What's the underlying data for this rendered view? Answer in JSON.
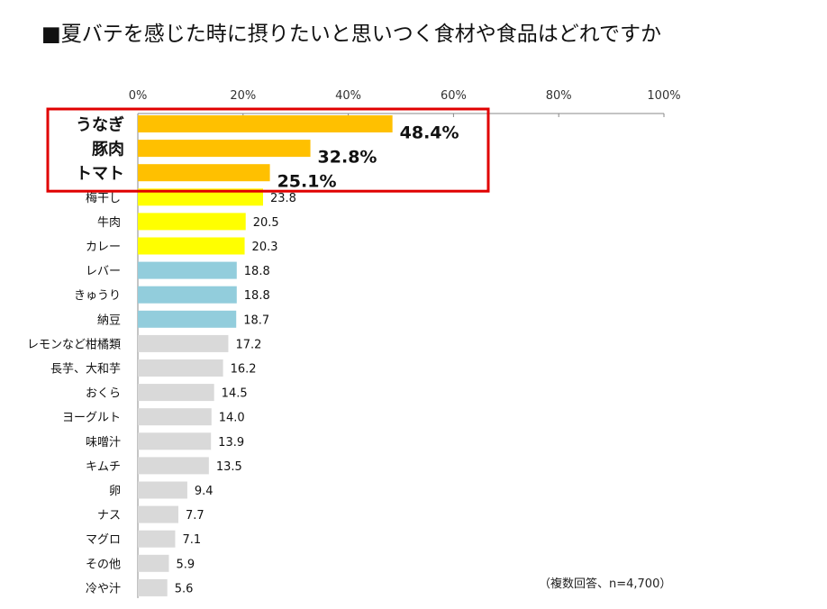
{
  "chart_data": {
    "type": "bar",
    "orientation": "horizontal",
    "title": "■夏バテを感じた時に摂りたいと思いつく食材や食品はどれですか",
    "note": "（複数回答、n=4,700）",
    "xlim": [
      0,
      100
    ],
    "ticks": [
      "0%",
      "20%",
      "40%",
      "60%",
      "80%",
      "100%"
    ],
    "tick_values": [
      0,
      20,
      40,
      60,
      80,
      100
    ],
    "highlight_count": 3,
    "categories": [
      "うなぎ",
      "豚肉",
      "トマト",
      "梅干し",
      "牛肉",
      "カレー",
      "レバー",
      "きゅうり",
      "納豆",
      "レモンなど柑橘類",
      "長芋、大和芋",
      "おくら",
      "ヨーグルト",
      "味噌汁",
      "キムチ",
      "卵",
      "ナス",
      "マグロ",
      "その他",
      "冷や汁"
    ],
    "values": [
      48.4,
      32.8,
      25.1,
      23.8,
      20.5,
      20.3,
      18.8,
      18.8,
      18.7,
      17.2,
      16.2,
      14.5,
      14.0,
      13.9,
      13.5,
      9.4,
      7.7,
      7.1,
      5.9,
      5.6
    ],
    "value_labels": [
      "48.4%",
      "32.8%",
      "25.1%",
      "23.8",
      "20.5",
      "20.3",
      "18.8",
      "18.8",
      "18.7",
      "17.2",
      "16.2",
      "14.5",
      "14.0",
      "13.9",
      "13.5",
      "9.4",
      "7.7",
      "7.1",
      "5.9",
      "5.6"
    ],
    "group_colors": [
      "#FFC000",
      "#FFC000",
      "#FFC000",
      "#FFFF00",
      "#FFFF00",
      "#FFFF00",
      "#92CDDC",
      "#92CDDC",
      "#92CDDC",
      "#D9D9D9",
      "#D9D9D9",
      "#D9D9D9",
      "#D9D9D9",
      "#D9D9D9",
      "#D9D9D9",
      "#D9D9D9",
      "#D9D9D9",
      "#D9D9D9",
      "#D9D9D9",
      "#D9D9D9"
    ],
    "highlight_box_color": "#E00000"
  }
}
